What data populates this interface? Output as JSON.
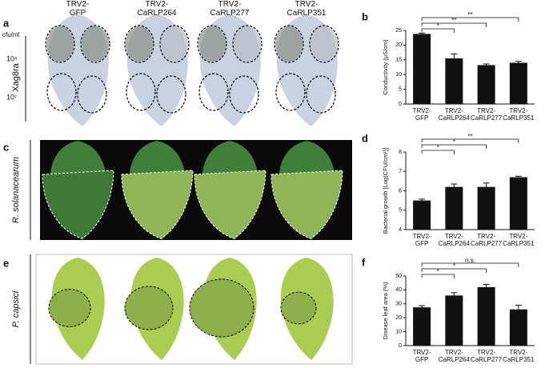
{
  "photos": {
    "columns": [
      "TRV2-\nGFP",
      "TRV2-\nCaRLP264",
      "TRV2-\nCaRLP277",
      "TRV2-\nCaRLP351"
    ],
    "rows": [
      {
        "letter": "a",
        "label": "Xag8ra"
      },
      {
        "letter": "c",
        "label": "R. solanacearum"
      },
      {
        "letter": "e",
        "label": "P. capsici"
      }
    ],
    "concentration": {
      "unit": "cfu/ml",
      "levels": [
        "10⁸",
        "10⁷"
      ]
    }
  },
  "chart_data": [
    {
      "type": "bar",
      "panel": "b",
      "ylabel": "Conductivity (µS/cm)",
      "categories": [
        "TRV2-\nGFP",
        "TRV2-\nCaRLP264",
        "TRV2-\nCaRLP277",
        "TRV2-\nCaRLP351"
      ],
      "values": [
        23.8,
        15.5,
        13.2,
        14.0
      ],
      "errors": [
        0.3,
        1.5,
        0.4,
        0.5
      ],
      "significance": [
        null,
        "*",
        "**",
        "**"
      ],
      "color": "#111111",
      "ylim": [
        0,
        25
      ],
      "yticks": [
        0,
        5,
        10,
        15,
        20,
        25
      ]
    },
    {
      "type": "bar",
      "panel": "d",
      "ylabel": "Bacterial growth [Log(CFU/cm²)]",
      "categories": [
        "TRV2-\nGFP",
        "TRV2-\nCaRLP264",
        "TRV2-\nCaRLP277",
        "TRV2-\nCaRLP351"
      ],
      "values": [
        5.5,
        6.2,
        6.2,
        6.7
      ],
      "errors": [
        0.07,
        0.15,
        0.2,
        0.05
      ],
      "significance": [
        null,
        "*",
        "*",
        "**"
      ],
      "color": "#111111",
      "ylim": [
        4,
        8
      ],
      "yticks": [
        4,
        5,
        6,
        7,
        8
      ]
    },
    {
      "type": "bar",
      "panel": "f",
      "ylabel": "Disease leaf area (%)",
      "categories": [
        "TRV2-\nGFP",
        "TRV2-\nCaRLP264",
        "TRV2-\nCaRLP277",
        "TRV2-\nCaRLP351"
      ],
      "values": [
        27.5,
        36,
        42,
        26
      ],
      "errors": [
        1.2,
        2,
        2,
        3
      ],
      "significance": [
        null,
        "*",
        "*",
        "n.s."
      ],
      "color": "#111111",
      "ylim": [
        0,
        50
      ],
      "yticks": [
        0,
        10,
        20,
        30,
        40,
        50
      ]
    }
  ]
}
